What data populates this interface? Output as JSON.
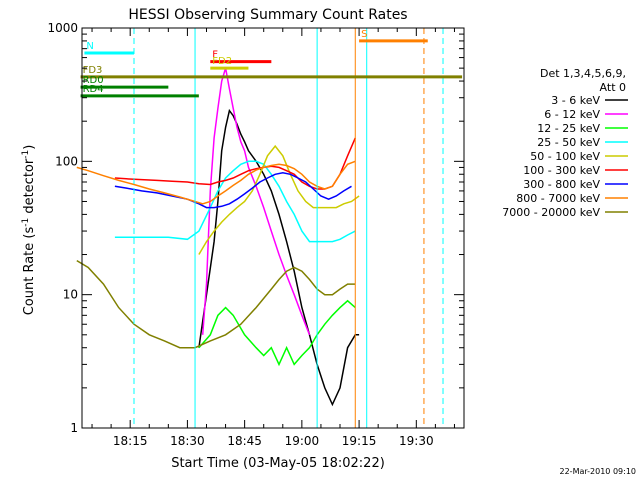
{
  "chart_data": {
    "type": "line",
    "title": "HESSI Observing Summary Count Rates",
    "xlabel": "Start Time (03-May-05 18:02:22)",
    "ylabel_main": "Count Rate (s",
    "ylabel_exp1": "-1",
    "ylabel_mid": " detector",
    "ylabel_exp2": "-1",
    "ylabel_end": ")",
    "timestamp": "22-Mar-2010 09:10",
    "y_scale": "log",
    "ylim": [
      1,
      1000
    ],
    "xlim_min": [
      2.37,
      102.5
    ],
    "x_ticks": [
      {
        "label": "18:15",
        "value": 15
      },
      {
        "label": "18:30",
        "value": 30
      },
      {
        "label": "18:45",
        "value": 45
      },
      {
        "label": "19:00",
        "value": 60
      },
      {
        "label": "19:15",
        "value": 75
      },
      {
        "label": "19:30",
        "value": 90
      }
    ],
    "y_ticks": [
      {
        "label": "1",
        "value": 1
      },
      {
        "label": "10",
        "value": 10
      },
      {
        "label": "100",
        "value": 100
      },
      {
        "label": "1000",
        "value": 1000
      }
    ],
    "legend": {
      "header1": "Det 1,3,4,5,6,9,",
      "header2": "Att 0",
      "position": "right"
    },
    "series": [
      {
        "name": "3 - 6 keV",
        "color": "#000000",
        "points": [
          [
            33,
            4
          ],
          [
            35,
            10
          ],
          [
            37,
            25
          ],
          [
            38,
            50
          ],
          [
            39,
            120
          ],
          [
            40,
            180
          ],
          [
            41,
            240
          ],
          [
            42,
            220
          ],
          [
            43,
            190
          ],
          [
            44,
            160
          ],
          [
            45,
            140
          ],
          [
            46,
            120
          ],
          [
            48,
            100
          ],
          [
            50,
            80
          ],
          [
            52,
            60
          ],
          [
            54,
            40
          ],
          [
            56,
            25
          ],
          [
            58,
            15
          ],
          [
            60,
            8
          ],
          [
            62,
            5
          ],
          [
            64,
            3
          ],
          [
            66,
            2
          ],
          [
            68,
            1.5
          ],
          [
            70,
            2
          ],
          [
            72,
            4
          ],
          [
            74,
            5
          ],
          [
            75,
            5
          ]
        ]
      },
      {
        "name": "6 - 12 keV",
        "color": "#ff00ff",
        "points": [
          [
            34,
            5
          ],
          [
            35,
            12
          ],
          [
            36,
            60
          ],
          [
            37,
            150
          ],
          [
            38,
            250
          ],
          [
            39,
            400
          ],
          [
            40,
            500
          ],
          [
            41,
            350
          ],
          [
            42,
            250
          ],
          [
            43,
            180
          ],
          [
            44,
            140
          ],
          [
            45,
            120
          ],
          [
            46,
            90
          ],
          [
            48,
            65
          ],
          [
            50,
            45
          ],
          [
            52,
            30
          ],
          [
            54,
            20
          ],
          [
            56,
            14
          ],
          [
            58,
            10
          ],
          [
            60,
            7
          ],
          [
            62,
            5
          ]
        ]
      },
      {
        "name": "12 - 25 keV",
        "color": "#00ff00",
        "points": [
          [
            33,
            4
          ],
          [
            36,
            5
          ],
          [
            38,
            7
          ],
          [
            40,
            8
          ],
          [
            42,
            7
          ],
          [
            45,
            5
          ],
          [
            48,
            4
          ],
          [
            50,
            3.5
          ],
          [
            52,
            4
          ],
          [
            54,
            3
          ],
          [
            56,
            4
          ],
          [
            58,
            3
          ],
          [
            60,
            3.5
          ],
          [
            62,
            4
          ],
          [
            64,
            5
          ],
          [
            66,
            6
          ],
          [
            68,
            7
          ],
          [
            70,
            8
          ],
          [
            72,
            9
          ],
          [
            74,
            8
          ]
        ]
      },
      {
        "name": "25 - 50 keV",
        "color": "#00ffff",
        "points": [
          [
            11,
            27
          ],
          [
            15,
            27
          ],
          [
            20,
            27
          ],
          [
            25,
            27
          ],
          [
            30,
            26
          ],
          [
            33,
            30
          ],
          [
            36,
            45
          ],
          [
            38,
            60
          ],
          [
            40,
            75
          ],
          [
            42,
            85
          ],
          [
            44,
            95
          ],
          [
            46,
            100
          ],
          [
            48,
            100
          ],
          [
            50,
            95
          ],
          [
            52,
            80
          ],
          [
            54,
            65
          ],
          [
            56,
            50
          ],
          [
            58,
            40
          ],
          [
            60,
            30
          ],
          [
            62,
            25
          ],
          [
            64,
            25
          ],
          [
            66,
            25
          ],
          [
            68,
            25
          ],
          [
            70,
            26
          ],
          [
            72,
            28
          ],
          [
            74,
            30
          ]
        ]
      },
      {
        "name": "50 - 100 keV",
        "color": "#cccc00",
        "points": [
          [
            33,
            20
          ],
          [
            35,
            25
          ],
          [
            37,
            30
          ],
          [
            39,
            35
          ],
          [
            41,
            40
          ],
          [
            43,
            45
          ],
          [
            45,
            50
          ],
          [
            47,
            60
          ],
          [
            49,
            80
          ],
          [
            51,
            110
          ],
          [
            53,
            130
          ],
          [
            55,
            110
          ],
          [
            57,
            80
          ],
          [
            59,
            60
          ],
          [
            61,
            50
          ],
          [
            63,
            45
          ],
          [
            65,
            45
          ],
          [
            67,
            45
          ],
          [
            69,
            45
          ],
          [
            71,
            48
          ],
          [
            73,
            50
          ],
          [
            75,
            55
          ]
        ]
      },
      {
        "name": "100 - 300 keV",
        "color": "#ff0000",
        "points": [
          [
            11,
            75
          ],
          [
            14,
            74
          ],
          [
            18,
            73
          ],
          [
            22,
            72
          ],
          [
            26,
            71
          ],
          [
            30,
            70
          ],
          [
            33,
            68
          ],
          [
            36,
            67
          ],
          [
            38,
            70
          ],
          [
            40,
            72
          ],
          [
            42,
            75
          ],
          [
            44,
            80
          ],
          [
            46,
            85
          ],
          [
            48,
            88
          ],
          [
            50,
            90
          ],
          [
            52,
            92
          ],
          [
            54,
            90
          ],
          [
            56,
            85
          ],
          [
            58,
            80
          ],
          [
            60,
            70
          ],
          [
            62,
            65
          ],
          [
            64,
            62
          ],
          [
            66,
            62
          ],
          [
            68,
            65
          ],
          [
            70,
            80
          ],
          [
            72,
            110
          ],
          [
            74,
            150
          ]
        ]
      },
      {
        "name": "300 - 800 keV",
        "color": "#0000ff",
        "points": [
          [
            11,
            65
          ],
          [
            14,
            63
          ],
          [
            18,
            60
          ],
          [
            22,
            58
          ],
          [
            26,
            55
          ],
          [
            30,
            52
          ],
          [
            33,
            48
          ],
          [
            35,
            45
          ],
          [
            37,
            45
          ],
          [
            39,
            46
          ],
          [
            41,
            48
          ],
          [
            43,
            52
          ],
          [
            45,
            57
          ],
          [
            47,
            63
          ],
          [
            49,
            70
          ],
          [
            51,
            75
          ],
          [
            53,
            80
          ],
          [
            55,
            82
          ],
          [
            57,
            80
          ],
          [
            59,
            75
          ],
          [
            61,
            70
          ],
          [
            63,
            62
          ],
          [
            65,
            55
          ],
          [
            67,
            52
          ],
          [
            69,
            55
          ],
          [
            71,
            60
          ],
          [
            73,
            65
          ]
        ]
      },
      {
        "name": "800 - 7000 keV",
        "color": "#ff8000",
        "points": [
          [
            1,
            90
          ],
          [
            4,
            85
          ],
          [
            8,
            78
          ],
          [
            12,
            72
          ],
          [
            16,
            67
          ],
          [
            20,
            62
          ],
          [
            24,
            58
          ],
          [
            28,
            54
          ],
          [
            32,
            50
          ],
          [
            34,
            48
          ],
          [
            36,
            50
          ],
          [
            38,
            55
          ],
          [
            40,
            60
          ],
          [
            42,
            66
          ],
          [
            44,
            72
          ],
          [
            46,
            80
          ],
          [
            48,
            86
          ],
          [
            50,
            90
          ],
          [
            52,
            93
          ],
          [
            54,
            95
          ],
          [
            56,
            93
          ],
          [
            58,
            88
          ],
          [
            60,
            80
          ],
          [
            62,
            70
          ],
          [
            64,
            65
          ],
          [
            66,
            62
          ],
          [
            68,
            65
          ],
          [
            70,
            80
          ],
          [
            72,
            95
          ],
          [
            74,
            100
          ]
        ]
      },
      {
        "name": "7000 - 20000 keV",
        "color": "#808000",
        "points": [
          [
            1,
            18
          ],
          [
            4,
            16
          ],
          [
            8,
            12
          ],
          [
            12,
            8
          ],
          [
            16,
            6
          ],
          [
            20,
            5
          ],
          [
            24,
            4.5
          ],
          [
            28,
            4
          ],
          [
            32,
            4
          ],
          [
            36,
            4.5
          ],
          [
            40,
            5
          ],
          [
            44,
            6
          ],
          [
            48,
            8
          ],
          [
            52,
            11
          ],
          [
            54,
            13
          ],
          [
            56,
            15
          ],
          [
            58,
            16
          ],
          [
            60,
            15
          ],
          [
            62,
            13
          ],
          [
            64,
            11
          ],
          [
            66,
            10
          ],
          [
            68,
            10
          ],
          [
            70,
            11
          ],
          [
            72,
            12
          ],
          [
            74,
            12
          ]
        ]
      }
    ],
    "status_labels": [
      {
        "text": "N",
        "color": "#00ffff",
        "start": 3,
        "end": 16,
        "y": 650
      },
      {
        "text": "F",
        "color": "#ff0000",
        "start": 36,
        "end": 52,
        "y": 560
      },
      {
        "text": "S",
        "color": "#ff8000",
        "start": 75,
        "end": 93,
        "y": 800
      },
      {
        "text": "FD2",
        "color": "#cccc00",
        "start": 36,
        "end": 46,
        "y": 500
      },
      {
        "text": "FD3",
        "color": "#808000",
        "start": 2,
        "end": 102,
        "y": 430
      },
      {
        "text": "RD0",
        "color": "#008000",
        "start": 2,
        "end": 25,
        "y": 360
      },
      {
        "text": "RD4",
        "color": "#008000",
        "start": 2,
        "end": 33,
        "y": 310
      }
    ],
    "vertical_markers": [
      {
        "value": 16,
        "color": "#00ffff",
        "style": "dashed"
      },
      {
        "value": 32,
        "color": "#00ffff",
        "style": "solid"
      },
      {
        "value": 64,
        "color": "#00ffff",
        "style": "solid"
      },
      {
        "value": 74,
        "color": "#ff8000",
        "style": "solid"
      },
      {
        "value": 77,
        "color": "#00ffff",
        "style": "solid"
      },
      {
        "value": 92,
        "color": "#ff8000",
        "style": "dashed"
      },
      {
        "value": 97,
        "color": "#00ffff",
        "style": "dashed"
      }
    ]
  }
}
